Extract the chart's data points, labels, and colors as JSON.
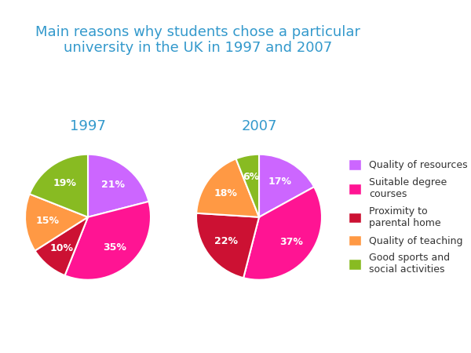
{
  "title": "Main reasons why students chose a particular\nuniversity in the UK in 1997 and 2007",
  "title_color": "#3399cc",
  "title_fontsize": 13,
  "year_labels": [
    "1997",
    "2007"
  ],
  "year_label_color": "#3399cc",
  "year_label_fontsize": 13,
  "legend_categories": [
    "Quality of resources",
    "Suitable degree\ncourses",
    "Proximity to\nparental home",
    "Quality of teaching",
    "Good sports and\nsocial activities"
  ],
  "colors": [
    "#cc66ff",
    "#ff1493",
    "#cc1133",
    "#ff9944",
    "#88bb22"
  ],
  "values_1997": [
    21,
    35,
    10,
    15,
    19
  ],
  "values_2007": [
    17,
    37,
    22,
    18,
    6
  ],
  "startangle": 90,
  "background_color": "#ffffff",
  "label_fontsize": 9,
  "legend_fontsize": 9,
  "legend_text_color": "#333333"
}
